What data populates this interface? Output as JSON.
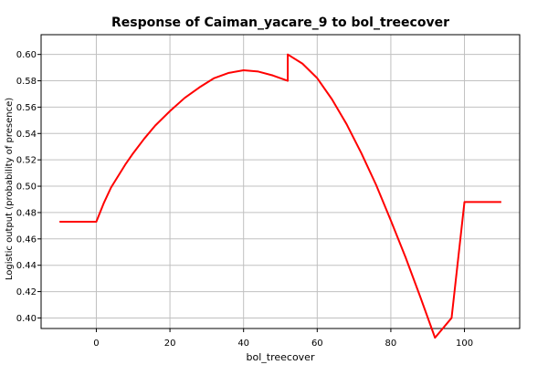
{
  "chart_data": {
    "type": "line",
    "title": "Response of Caiman_yacare_9 to bol_treecover",
    "xlabel": "bol_treecover",
    "ylabel": "Logistic output (probability of presence)",
    "xlim": [
      -15,
      115
    ],
    "ylim": [
      0.392,
      0.615
    ],
    "xticks": [
      0,
      20,
      40,
      60,
      80,
      100
    ],
    "yticks": [
      0.4,
      0.42,
      0.44,
      0.46,
      0.48,
      0.5,
      0.52,
      0.54,
      0.56,
      0.58,
      0.6
    ],
    "grid": true,
    "series": [
      {
        "color": "#ff0000",
        "x": [
          -10,
          0,
          2,
          4,
          6,
          8,
          10,
          13,
          16,
          20,
          24,
          28,
          32,
          36,
          40,
          44,
          48,
          52,
          52,
          56,
          60,
          64,
          68,
          72,
          76,
          80,
          84,
          88,
          92,
          96.5,
          100,
          110
        ],
        "y": [
          0.473,
          0.473,
          0.487,
          0.499,
          0.508,
          0.517,
          0.525,
          0.536,
          0.546,
          0.557,
          0.567,
          0.575,
          0.582,
          0.586,
          0.588,
          0.587,
          0.584,
          0.58,
          0.6,
          0.593,
          0.582,
          0.566,
          0.547,
          0.525,
          0.501,
          0.474,
          0.446,
          0.416,
          0.385,
          0.4,
          0.488,
          0.488
        ]
      }
    ]
  }
}
